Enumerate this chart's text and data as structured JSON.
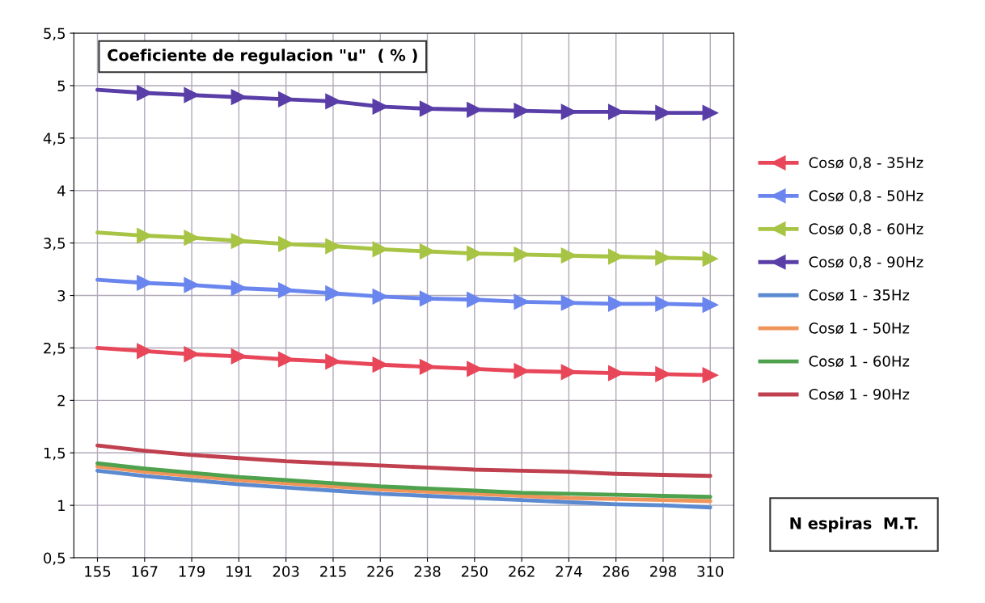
{
  "chart_data": {
    "type": "line",
    "title": "Coeficiente de regulacion \"u\"  ( % )",
    "xlabel": "N espiras  M.T.",
    "categories": [
      "155",
      "167",
      "179",
      "191",
      "203",
      "215",
      "226",
      "238",
      "250",
      "262",
      "274",
      "286",
      "298",
      "310"
    ],
    "ylim": [
      0.5,
      5.5
    ],
    "yticks": [
      {
        "value": 0.5,
        "label": "0,5"
      },
      1,
      {
        "value": 1.5,
        "label": "1,5"
      },
      2,
      {
        "value": 2.5,
        "label": "2,5"
      },
      3,
      {
        "value": 3.5,
        "label": "3,5"
      },
      4,
      {
        "value": 4.5,
        "label": "4,5"
      },
      5,
      {
        "value": 5.5,
        "label": "5,5"
      }
    ],
    "grid": true,
    "legend": "right",
    "series": [
      {
        "name": "Cosø 0,8 - 35Hz",
        "color": "#e8475a",
        "marker": "triangle",
        "values": [
          2.5,
          2.47,
          2.44,
          2.42,
          2.39,
          2.37,
          2.34,
          2.32,
          2.3,
          2.28,
          2.27,
          2.26,
          2.25,
          2.24
        ]
      },
      {
        "name": "Cosø 0,8 - 50Hz",
        "color": "#6a86ee",
        "marker": "triangle",
        "values": [
          3.15,
          3.12,
          3.1,
          3.07,
          3.05,
          3.02,
          2.99,
          2.97,
          2.96,
          2.94,
          2.93,
          2.92,
          2.92,
          2.91
        ]
      },
      {
        "name": "Cosø 0,8 - 60Hz",
        "color": "#a8c445",
        "marker": "triangle",
        "values": [
          3.6,
          3.57,
          3.55,
          3.52,
          3.49,
          3.47,
          3.44,
          3.42,
          3.4,
          3.39,
          3.38,
          3.37,
          3.36,
          3.35
        ]
      },
      {
        "name": "Cosø 0,8 - 90Hz",
        "color": "#5a3ea8",
        "marker": "triangle",
        "values": [
          4.96,
          4.93,
          4.91,
          4.89,
          4.87,
          4.85,
          4.8,
          4.78,
          4.77,
          4.76,
          4.75,
          4.75,
          4.74,
          4.74
        ]
      },
      {
        "name": "Cosø 1 - 35Hz",
        "color": "#5b8ad0",
        "marker": "none",
        "values": [
          1.33,
          1.28,
          1.24,
          1.2,
          1.17,
          1.14,
          1.11,
          1.09,
          1.07,
          1.05,
          1.03,
          1.01,
          1.0,
          0.98
        ]
      },
      {
        "name": "Cosø 1 - 50Hz",
        "color": "#f0955a",
        "marker": "none",
        "values": [
          1.37,
          1.32,
          1.28,
          1.24,
          1.21,
          1.18,
          1.15,
          1.13,
          1.11,
          1.09,
          1.07,
          1.06,
          1.05,
          1.04
        ]
      },
      {
        "name": "Cosø 1 - 60Hz",
        "color": "#4ea24e",
        "marker": "none",
        "values": [
          1.4,
          1.35,
          1.31,
          1.27,
          1.24,
          1.21,
          1.18,
          1.16,
          1.14,
          1.12,
          1.11,
          1.1,
          1.09,
          1.08
        ]
      },
      {
        "name": "Cosø 1 - 90Hz",
        "color": "#c0404f",
        "marker": "none",
        "values": [
          1.57,
          1.52,
          1.48,
          1.45,
          1.42,
          1.4,
          1.38,
          1.36,
          1.34,
          1.33,
          1.32,
          1.3,
          1.29,
          1.28
        ]
      }
    ]
  }
}
